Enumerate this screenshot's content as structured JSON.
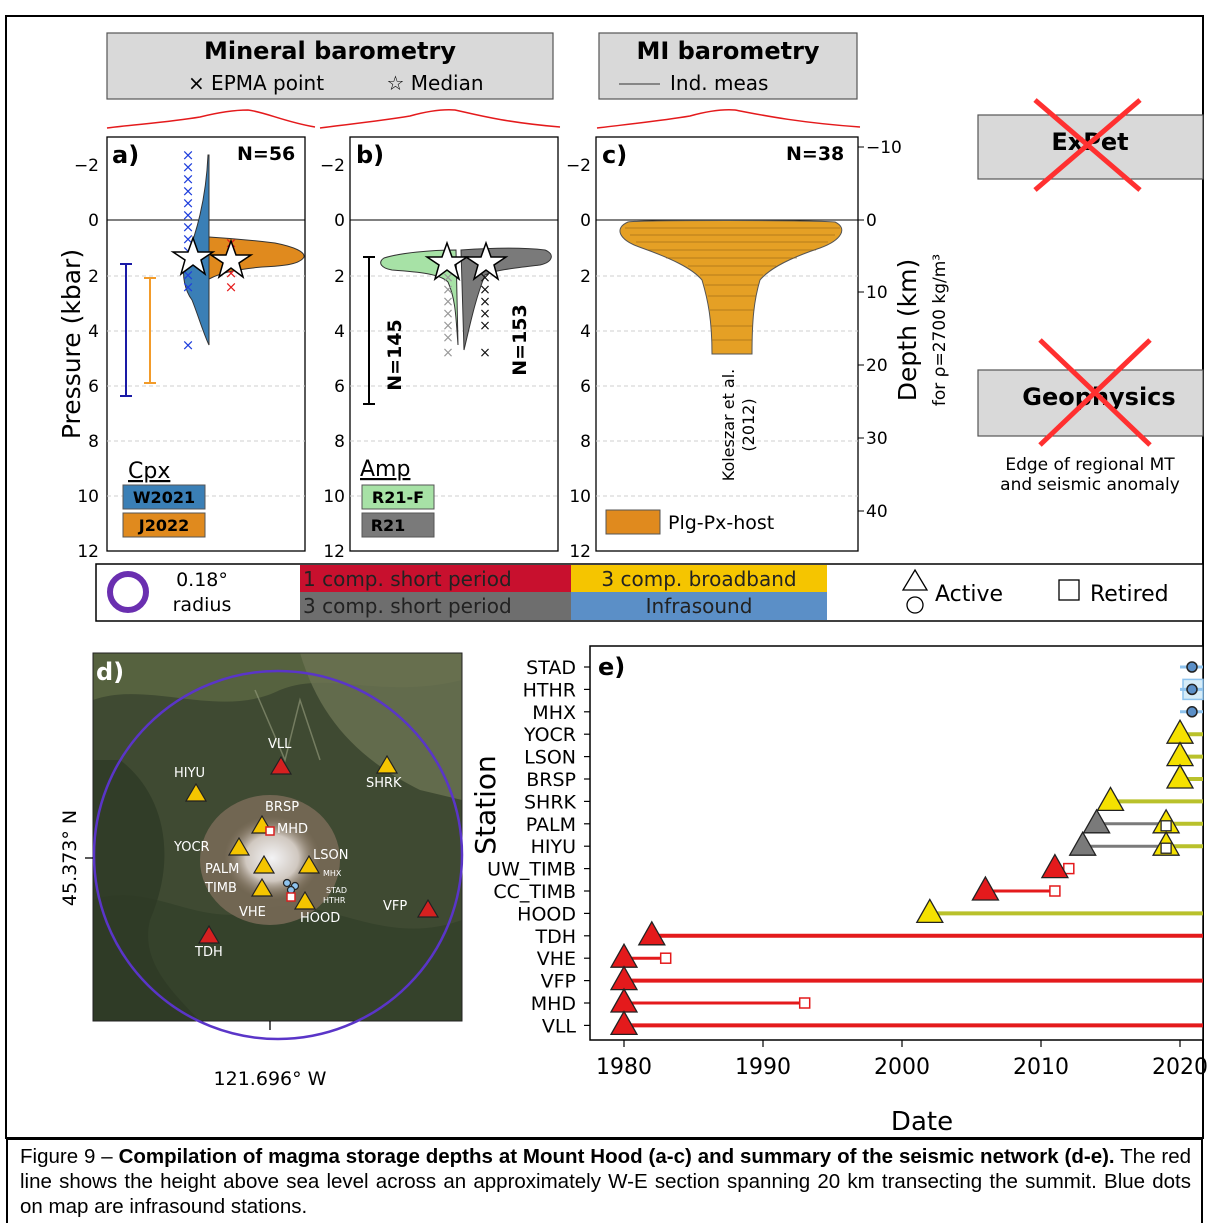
{
  "header": {
    "mineral_title": "Mineral barometry",
    "mineral_legend_epma": "× EPMA point",
    "mineral_legend_median": "☆ Median",
    "mi_title": "MI barometry",
    "mi_legend": "Ind. meas",
    "expet": "ExPet",
    "geophysics": "Geophysics",
    "geophysics_note_1": "Edge of regional MT",
    "geophysics_note_2": "and seismic anomaly"
  },
  "panel_a": {
    "label": "a)",
    "n": "N=56",
    "ylabel": "Pressure (kbar)",
    "yticks": [
      "−2",
      "0",
      "2",
      "4",
      "6",
      "8",
      "10",
      "12"
    ],
    "legend_title": "Cpx",
    "legend": [
      "W2021",
      "J2022"
    ]
  },
  "panel_b": {
    "label": "b)",
    "n_left": "N=145",
    "n_right": "N=153",
    "yticks": [
      "−2",
      "0",
      "2",
      "4",
      "6",
      "8",
      "10",
      "12"
    ],
    "legend_title": "Amp",
    "legend": [
      "R21-F",
      "R21"
    ]
  },
  "panel_c": {
    "label": "c)",
    "n": "N=38",
    "yticks": [
      "−2",
      "0",
      "2",
      "4",
      "6",
      "8",
      "10",
      "12"
    ],
    "depth_ticks": [
      "−10",
      "0",
      "10",
      "20",
      "30",
      "40"
    ],
    "depth_label": "Depth (km)",
    "depth_sub": "for ρ=2700 kg/m³",
    "ref_1": "Koleszar et al.",
    "ref_2": "(2012)",
    "legend": "Plg-Px-host"
  },
  "network_legend": {
    "radius_1": "0.18°",
    "radius_2": "radius",
    "c1": "1 comp. short period",
    "c2": "3 comp. broadband",
    "c3": "3 comp. short period",
    "c4": "Infrasound",
    "active": "Active",
    "retired": "Retired"
  },
  "map": {
    "label": "d)",
    "lat": "45.373° N",
    "lon": "121.696° W",
    "stations": [
      "VLL",
      "HIYU",
      "SHRK",
      "BRSP",
      "MHD",
      "YOCR",
      "PALM",
      "LSON",
      "TIMB",
      "MHX",
      "STAD",
      "HTHR",
      "VHE",
      "HOOD",
      "VFP",
      "TDH"
    ]
  },
  "timeline": {
    "label": "e)",
    "xlabel": "Date",
    "ylabel": "Station",
    "xticks": [
      "1980",
      "1990",
      "2000",
      "2010",
      "2020"
    ],
    "stations": [
      "STAD",
      "HTHR",
      "MHX",
      "YOCR",
      "LSON",
      "BRSP",
      "SHRK",
      "PALM",
      "HIYU",
      "UW_TIMB",
      "CC_TIMB",
      "HOOD",
      "TDH",
      "VHE",
      "VFP",
      "MHD",
      "VLL"
    ]
  },
  "colors": {
    "red": "#e41a1c",
    "yellow": "#f5e100",
    "gray": "#7a7a7a",
    "blue": "#5b8fc7",
    "orange": "#e08a1e",
    "green": "#a7e2a6",
    "purple": "#6a2fb0",
    "olive": "#b9c12b"
  },
  "caption": {
    "prefix": "Figure 9 – ",
    "bold": "Compilation of magma storage depths at Mount Hood (a-c) and summary of the seismic network (d-e).",
    "rest": " The red line shows the height above sea level across an approximately W-E section spanning 20 km transecting the summit. Blue dots on map are infrasound stations."
  }
}
